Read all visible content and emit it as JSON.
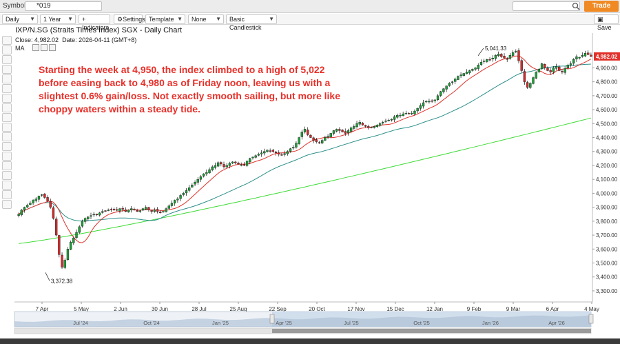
{
  "app": {
    "symbols_label": "Symbols:",
    "symbol_value": "*019",
    "trade_label": "Trade",
    "save_label": "Save"
  },
  "toolbar": {
    "period": "Daily",
    "range": "1 Year",
    "indicators": "Indicators",
    "settings": "Settings",
    "template": "Template",
    "none": "None",
    "style": "Basic Candlestick"
  },
  "chart_header": {
    "title": "IXP/N.SG (Straits Times Index) SGX - Daily Chart",
    "close_label": "Close:",
    "close_value": "4,982.02",
    "date_label": "Date:",
    "date_value": "2026-04-11 (GMT+8)",
    "ma_label": "MA"
  },
  "annotation": "Starting the week at 4,950, the index climbed to a high of 5,022 before easing back to 4,980 as of Friday noon, leaving us with a slightest 0.6% gain/loss. Not exactly smooth sailing, but more like choppy waters within a steady tide.",
  "colors": {
    "up": "#1f9e3a",
    "down": "#d42a2a",
    "ma_fast": "#e0312a",
    "ma_mid": "#2c8f8a",
    "ma_slow": "#3ddb35",
    "price_tag": "#e0312a",
    "annotation": "#e8302a"
  },
  "chart_data": {
    "type": "candlestick",
    "title": "IXP/N.SG (Straits Times Index) SGX - Daily Chart",
    "y_ticks": [
      "4,900.00",
      "4,800.00",
      "4,700.00",
      "4,600.00",
      "4,500.00",
      "4,400.00",
      "4,300.00",
      "4,200.00",
      "4,100.00",
      "4,000.00",
      "3,900.00",
      "3,800.00",
      "3,700.00",
      "3,600.00",
      "3,500.00",
      "3,400.00",
      "3,300.00"
    ],
    "x_ticks": [
      "7 Apr",
      "5 May",
      "2 Jun",
      "30 Jun",
      "28 Jul",
      "25 Aug",
      "22 Sep",
      "20 Oct",
      "17 Nov",
      "15 Dec",
      "12 Jan",
      "9 Feb",
      "9 Mar",
      "6 Apr",
      "4 May"
    ],
    "ylim": [
      3270,
      5090
    ],
    "last_price_label": "4,982.02",
    "last_price": 4982.02,
    "high_annotation": {
      "label": "5,041.33",
      "value": 5041.33
    },
    "low_annotation": {
      "label": "3,372.38",
      "value": 3372.38
    },
    "closes": [
      3850,
      3880,
      3900,
      3915,
      3930,
      3950,
      3960,
      3980,
      3990,
      3970,
      3945,
      3900,
      3820,
      3700,
      3560,
      3470,
      3520,
      3600,
      3650,
      3680,
      3720,
      3760,
      3800,
      3820,
      3830,
      3840,
      3850,
      3845,
      3860,
      3870,
      3875,
      3880,
      3885,
      3880,
      3878,
      3890,
      3885,
      3870,
      3880,
      3890,
      3880,
      3870,
      3875,
      3890,
      3900,
      3880,
      3870,
      3880,
      3870,
      3860,
      3870,
      3890,
      3910,
      3930,
      3950,
      3960,
      3985,
      4000,
      4020,
      4040,
      4060,
      4080,
      4100,
      4120,
      4140,
      4150,
      4170,
      4190,
      4200,
      4220,
      4210,
      4190,
      4200,
      4215,
      4225,
      4218,
      4210,
      4205,
      4200,
      4230,
      4250,
      4260,
      4270,
      4280,
      4290,
      4300,
      4310,
      4305,
      4300,
      4290,
      4280,
      4275,
      4285,
      4300,
      4320,
      4330,
      4360,
      4400,
      4440,
      4460,
      4420,
      4400,
      4380,
      4370,
      4360,
      4380,
      4400,
      4410,
      4430,
      4450,
      4460,
      4450,
      4440,
      4430,
      4450,
      4470,
      4480,
      4500,
      4510,
      4490,
      4480,
      4470,
      4475,
      4480,
      4490,
      4500,
      4510,
      4520,
      4525,
      4530,
      4550,
      4560,
      4560,
      4570,
      4575,
      4570,
      4575,
      4590,
      4610,
      4630,
      4650,
      4660,
      4660,
      4660,
      4670,
      4700,
      4730,
      4750,
      4770,
      4790,
      4800,
      4820,
      4840,
      4850,
      4860,
      4870,
      4880,
      4890,
      4900,
      4920,
      4940,
      4950,
      4960,
      4960,
      4970,
      4990,
      5000,
      4980,
      4970,
      4960,
      4990,
      5010,
      5020,
      4950,
      4880,
      4800,
      4760,
      4790,
      4830,
      4870,
      4890,
      4930,
      4900,
      4880,
      4870,
      4900,
      4910,
      4880,
      4870,
      4895,
      4920,
      4930,
      4960,
      4980,
      4975,
      4990,
      5005,
      4995,
      4982
    ],
    "ma_fast_visible": true,
    "ma_mid_visible": true,
    "ma_slow_visible": true,
    "grid": false,
    "navigator_labels": [
      "Jul '24",
      "Oct '24",
      "Jan '25",
      "Apr '25",
      "Jul '25",
      "Oct '25",
      "Jan '26",
      "Apr '26"
    ]
  }
}
